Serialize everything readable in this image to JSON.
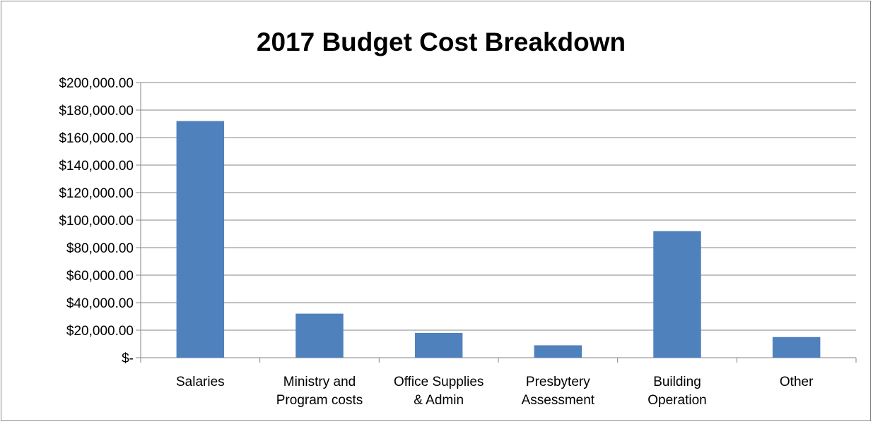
{
  "chart_data": {
    "type": "bar",
    "title": "2017 Budget Cost Breakdown",
    "xlabel": "",
    "ylabel": "",
    "categories": [
      [
        "Salaries"
      ],
      [
        "Ministry and",
        "Program costs"
      ],
      [
        "Office Supplies",
        "& Admin"
      ],
      [
        "Presbytery",
        "Assessment"
      ],
      [
        "Building",
        "Operation"
      ],
      [
        "Other"
      ]
    ],
    "values": [
      172000,
      32000,
      18000,
      9000,
      92000,
      15000
    ],
    "ylim": [
      0,
      200000
    ],
    "ytick_values": [
      0,
      20000,
      40000,
      60000,
      80000,
      100000,
      120000,
      140000,
      160000,
      180000,
      200000
    ],
    "ytick_labels": [
      "$-",
      "$20,000.00",
      "$40,000.00",
      "$60,000.00",
      "$80,000.00",
      "$100,000.00",
      "$120,000.00",
      "$140,000.00",
      "$160,000.00",
      "$180,000.00",
      "$200,000.00"
    ],
    "grid": true,
    "legend": "none",
    "bar_color": "#4f81bd",
    "grid_color": "#868686"
  }
}
